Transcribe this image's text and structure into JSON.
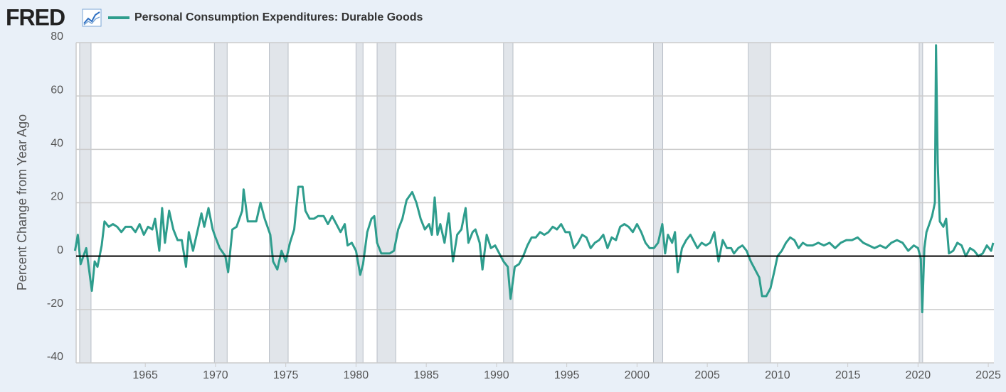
{
  "brand": "FRED",
  "chart_data": {
    "type": "line",
    "ylabel": "Percent Change from Year Ago",
    "x": [
      1960.0,
      1960.2,
      1960.4,
      1960.6,
      1960.8,
      1961.0,
      1961.2,
      1961.4,
      1961.6,
      1961.9,
      1962.1,
      1962.4,
      1962.7,
      1963.0,
      1963.3,
      1963.6,
      1964.0,
      1964.3,
      1964.6,
      1964.9,
      1965.2,
      1965.5,
      1965.7,
      1966.0,
      1966.2,
      1966.4,
      1966.7,
      1967.0,
      1967.3,
      1967.6,
      1967.9,
      1968.1,
      1968.4,
      1968.7,
      1969.0,
      1969.2,
      1969.5,
      1969.8,
      1970.0,
      1970.3,
      1970.7,
      1970.9,
      1971.2,
      1971.5,
      1971.9,
      1972.0,
      1972.3,
      1972.6,
      1972.9,
      1973.2,
      1973.5,
      1973.9,
      1974.1,
      1974.4,
      1974.7,
      1975.0,
      1975.3,
      1975.6,
      1975.9,
      1976.2,
      1976.4,
      1976.7,
      1977.0,
      1977.3,
      1977.7,
      1978.0,
      1978.3,
      1978.6,
      1978.9,
      1979.2,
      1979.4,
      1979.7,
      1980.0,
      1980.3,
      1980.5,
      1980.8,
      1981.1,
      1981.3,
      1981.5,
      1981.8,
      1982.1,
      1982.4,
      1982.7,
      1983.0,
      1983.3,
      1983.6,
      1984.0,
      1984.3,
      1984.6,
      1984.9,
      1985.2,
      1985.4,
      1985.6,
      1985.8,
      1986.0,
      1986.3,
      1986.6,
      1986.9,
      1987.2,
      1987.5,
      1987.8,
      1988.0,
      1988.3,
      1988.5,
      1988.8,
      1989.0,
      1989.3,
      1989.6,
      1989.9,
      1990.2,
      1990.5,
      1990.8,
      1991.0,
      1991.3,
      1991.6,
      1991.9,
      1992.2,
      1992.5,
      1992.8,
      1993.1,
      1993.4,
      1993.7,
      1994.0,
      1994.3,
      1994.6,
      1994.9,
      1995.2,
      1995.5,
      1995.8,
      1996.1,
      1996.4,
      1996.7,
      1997.0,
      1997.3,
      1997.6,
      1997.9,
      1998.2,
      1998.5,
      1998.8,
      1999.1,
      1999.4,
      1999.7,
      2000.0,
      2000.3,
      2000.6,
      2000.9,
      2001.2,
      2001.5,
      2001.8,
      2002.0,
      2002.2,
      2002.5,
      2002.7,
      2002.9,
      2003.2,
      2003.5,
      2003.8,
      2004.0,
      2004.3,
      2004.6,
      2004.9,
      2005.2,
      2005.5,
      2005.8,
      2006.1,
      2006.4,
      2006.7,
      2006.9,
      2007.2,
      2007.5,
      2007.8,
      2008.1,
      2008.4,
      2008.7,
      2008.9,
      2009.2,
      2009.5,
      2009.8,
      2010.0,
      2010.3,
      2010.6,
      2010.9,
      2011.2,
      2011.5,
      2011.8,
      2012.1,
      2012.5,
      2012.9,
      2013.3,
      2013.7,
      2014.1,
      2014.5,
      2014.9,
      2015.3,
      2015.7,
      2016.1,
      2016.5,
      2016.9,
      2017.3,
      2017.7,
      2018.1,
      2018.5,
      2018.9,
      2019.3,
      2019.7,
      2020.0,
      2020.2,
      2020.3,
      2020.45,
      2020.6,
      2020.8,
      2021.0,
      2021.2,
      2021.28,
      2021.4,
      2021.55,
      2021.8,
      2022.0,
      2022.2,
      2022.5,
      2022.8,
      2023.1,
      2023.4,
      2023.7,
      2024.0,
      2024.3,
      2024.6,
      2024.9,
      2025.2,
      2025.35
    ],
    "series": [
      {
        "name": "Personal Consumption Expenditures: Durable Goods",
        "color": "#2e9d8d",
        "values": [
          2,
          8,
          -3,
          0,
          3,
          -5,
          -13,
          -2,
          -4,
          4,
          13,
          11,
          12,
          11,
          9,
          11,
          11,
          9,
          12,
          8,
          11,
          10,
          14,
          2,
          18,
          5,
          17,
          10,
          6,
          6,
          -4,
          9,
          2,
          9,
          16,
          11,
          18,
          10,
          7,
          3,
          0,
          -6,
          10,
          11,
          17,
          25,
          13,
          13,
          13,
          20,
          14,
          8,
          -2,
          -5,
          2,
          -2,
          5,
          10,
          26,
          26,
          17,
          14,
          14,
          15,
          15,
          12,
          15,
          12,
          9,
          12,
          4,
          5,
          2,
          -7,
          -3,
          9,
          14,
          15,
          5,
          1,
          1,
          1,
          2,
          10,
          14,
          21,
          24,
          20,
          14,
          10,
          12,
          8,
          22,
          8,
          12,
          5,
          16,
          -2,
          8,
          10,
          18,
          5,
          9,
          10,
          5,
          -5,
          8,
          3,
          4,
          1,
          -2,
          -4,
          -16,
          -4,
          -3,
          0,
          4,
          7,
          7,
          9,
          8,
          9,
          11,
          10,
          12,
          9,
          9,
          3,
          5,
          8,
          7,
          3,
          5,
          6,
          8,
          3,
          7,
          6,
          11,
          12,
          11,
          9,
          12,
          9,
          5,
          3,
          3,
          5,
          12,
          1,
          8,
          5,
          9,
          -6,
          3,
          6,
          8,
          6,
          3,
          5,
          4,
          5,
          9,
          -2,
          6,
          3,
          3,
          1,
          3,
          4,
          2,
          -2,
          -5,
          -8,
          -15,
          -15,
          -12,
          -5,
          0,
          2,
          5,
          7,
          6,
          3,
          5,
          4,
          4,
          5,
          4,
          5,
          3,
          5,
          6,
          6,
          7,
          5,
          4,
          3,
          4,
          3,
          5,
          6,
          5,
          2,
          4,
          3,
          -1,
          -21,
          3,
          9,
          12,
          15,
          20,
          79,
          35,
          13,
          11,
          14,
          1,
          2,
          5,
          4,
          0,
          3,
          2,
          0,
          1,
          4,
          2,
          5
        ]
      }
    ],
    "recessions": [
      [
        1960.33,
        1961.14
      ],
      [
        1969.92,
        1970.83
      ],
      [
        1973.83,
        1975.17
      ],
      [
        1980.0,
        1980.5
      ],
      [
        1981.5,
        1982.83
      ],
      [
        1990.5,
        1991.17
      ],
      [
        2001.17,
        2001.83
      ],
      [
        2007.92,
        2009.5
      ],
      [
        2020.08,
        2020.33
      ]
    ],
    "xlim": [
      1960.08,
      2025.4
    ],
    "xticks": [
      1965,
      1970,
      1975,
      1980,
      1985,
      1990,
      1995,
      2000,
      2005,
      2010,
      2015,
      2020,
      2025
    ],
    "ylim": [
      -40,
      80
    ],
    "yticks": [
      -40,
      -20,
      0,
      20,
      40,
      60,
      80
    ],
    "grid": true
  }
}
